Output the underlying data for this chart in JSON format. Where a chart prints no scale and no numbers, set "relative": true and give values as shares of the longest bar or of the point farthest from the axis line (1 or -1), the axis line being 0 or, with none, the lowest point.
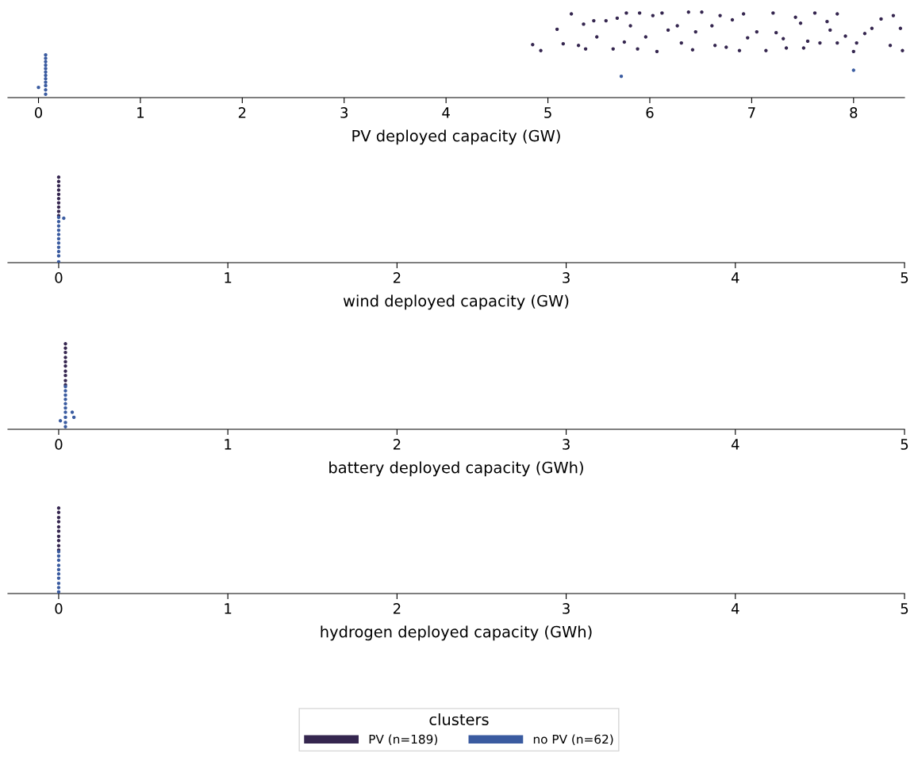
{
  "chart_data": [
    {
      "type": "scatter",
      "xlabel": "PV deployed capacity (GW)",
      "relative": true,
      "tick_labels": "x",
      "grid": false,
      "marker": "circle",
      "legend": "bottom",
      "legend_title": "clusters",
      "xlim": [
        -0.3,
        8.5
      ],
      "xticks": [
        0,
        1,
        2,
        3,
        4,
        5,
        6,
        7,
        8
      ],
      "series": [
        {
          "name": "PV (n=189)",
          "color": "#35264f",
          "x": [
            4.85,
            4.93,
            5.09,
            5.23,
            5.15,
            5.3,
            5.37,
            5.35,
            5.45,
            5.48,
            5.57,
            5.64,
            5.68,
            5.77,
            5.75,
            5.81,
            5.9,
            5.88,
            5.96,
            6.03,
            6.07,
            6.12,
            6.18,
            6.27,
            6.31,
            6.38,
            6.42,
            6.45,
            6.51,
            6.61,
            6.64,
            6.69,
            6.75,
            6.81,
            6.88,
            6.92,
            6.96,
            7.05,
            7.14,
            7.21,
            7.24,
            7.31,
            7.34,
            7.43,
            7.48,
            7.51,
            7.55,
            7.62,
            7.67,
            7.74,
            7.77,
            7.84,
            7.84,
            7.92,
            8.0,
            8.03,
            8.11,
            8.18,
            8.27,
            8.36,
            8.39,
            8.46,
            8.48
          ],
          "values": [
            0.62,
            0.55,
            0.8,
            0.98,
            0.63,
            0.61,
            0.57,
            0.86,
            0.9,
            0.71,
            0.9,
            0.57,
            0.93,
            0.99,
            0.65,
            0.84,
            0.99,
            0.57,
            0.71,
            0.96,
            0.54,
            0.99,
            0.79,
            0.84,
            0.64,
            1.0,
            0.56,
            0.77,
            1.0,
            0.84,
            0.61,
            0.96,
            0.59,
            0.91,
            0.55,
            0.98,
            0.7,
            0.77,
            0.55,
            0.99,
            0.76,
            0.69,
            0.58,
            0.94,
            0.87,
            0.58,
            0.66,
            0.99,
            0.64,
            0.89,
            0.79,
            0.98,
            0.64,
            0.72,
            0.54,
            0.64,
            0.75,
            0.81,
            0.92,
            0.61,
            0.96,
            0.81,
            0.55
          ]
        },
        {
          "name": "no PV (n=62)",
          "color": "#3a5ba0",
          "x": [
            0.07,
            0.07,
            0.07,
            0.07,
            0.07,
            0.07,
            0.07,
            0.07,
            0.07,
            0.07,
            0.07,
            0.07,
            0.0,
            5.72,
            8.0
          ],
          "values": [
            0.5,
            0.46,
            0.42,
            0.38,
            0.34,
            0.3,
            0.26,
            0.22,
            0.18,
            0.14,
            0.09,
            0.04,
            0.12,
            0.25,
            0.32
          ]
        }
      ]
    },
    {
      "type": "scatter",
      "xlabel": "wind deployed capacity (GW)",
      "relative": true,
      "tick_labels": "x",
      "grid": false,
      "marker": "circle",
      "xlim": [
        -0.3,
        5
      ],
      "xticks": [
        0,
        1,
        2,
        3,
        4,
        5
      ],
      "series": [
        {
          "color": "#35264f",
          "x": [
            0,
            0,
            0,
            0,
            0,
            0,
            0,
            0,
            0,
            0
          ],
          "values": [
            1.0,
            0.95,
            0.9,
            0.85,
            0.8,
            0.75,
            0.7,
            0.65,
            0.6,
            0.55
          ]
        },
        {
          "color": "#3a5ba0",
          "x": [
            0,
            0,
            0,
            0,
            0,
            0,
            0,
            0,
            0,
            0,
            0,
            0.03
          ],
          "values": [
            0.53,
            0.48,
            0.43,
            0.38,
            0.33,
            0.28,
            0.23,
            0.18,
            0.13,
            0.08,
            0.01,
            0.52
          ]
        }
      ]
    },
    {
      "type": "scatter",
      "xlabel": "battery deployed capacity (GWh)",
      "relative": true,
      "tick_labels": "x",
      "grid": false,
      "marker": "circle",
      "xlim": [
        -0.3,
        5
      ],
      "xticks": [
        0,
        1,
        2,
        3,
        4,
        5
      ],
      "series": [
        {
          "color": "#35264f",
          "x": [
            0.04,
            0.04,
            0.04,
            0.04,
            0.04,
            0.04,
            0.04,
            0.04,
            0.04,
            0.04
          ],
          "values": [
            1.0,
            0.95,
            0.9,
            0.84,
            0.79,
            0.74,
            0.68,
            0.63,
            0.57,
            0.52
          ]
        },
        {
          "color": "#3a5ba0",
          "x": [
            0.04,
            0.04,
            0.04,
            0.04,
            0.04,
            0.04,
            0.04,
            0.04,
            0.04,
            0.04,
            0.01,
            0.08,
            0.09
          ],
          "values": [
            0.5,
            0.45,
            0.4,
            0.35,
            0.3,
            0.25,
            0.2,
            0.14,
            0.08,
            0.03,
            0.1,
            0.2,
            0.14
          ]
        }
      ]
    },
    {
      "type": "scatter",
      "xlabel": "hydrogen deployed capacity (GWh)",
      "relative": true,
      "tick_labels": "x",
      "grid": false,
      "marker": "circle",
      "xlim": [
        -0.3,
        5
      ],
      "xticks": [
        0,
        1,
        2,
        3,
        4,
        5
      ],
      "series": [
        {
          "color": "#35264f",
          "x": [
            0,
            0,
            0,
            0,
            0,
            0,
            0,
            0,
            0,
            0
          ],
          "values": [
            1.0,
            0.95,
            0.89,
            0.84,
            0.78,
            0.73,
            0.67,
            0.62,
            0.56,
            0.51
          ]
        },
        {
          "color": "#3a5ba0",
          "x": [
            0,
            0,
            0,
            0,
            0,
            0,
            0,
            0,
            0,
            0
          ],
          "values": [
            0.49,
            0.44,
            0.39,
            0.33,
            0.28,
            0.23,
            0.18,
            0.12,
            0.07,
            0.02
          ]
        }
      ]
    }
  ]
}
